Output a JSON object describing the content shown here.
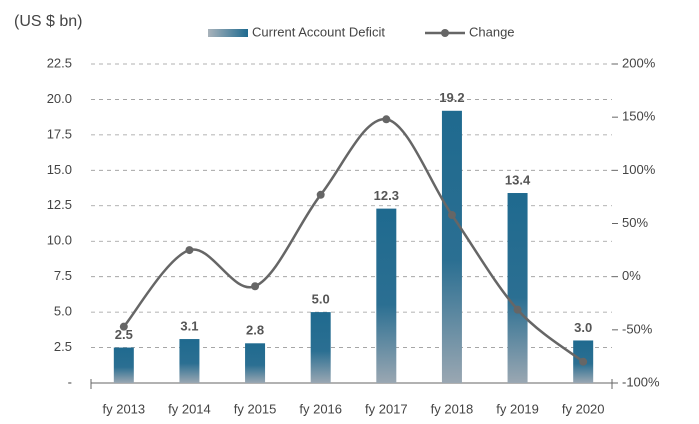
{
  "chart_data": {
    "type": "bar_line",
    "y_label": "(US $ bn)",
    "categories": [
      "fy 2013",
      "fy 2014",
      "fy 2015",
      "fy 2016",
      "fy 2017",
      "fy 2018",
      "fy 2019",
      "fy 2020"
    ],
    "series": [
      {
        "name": "Current Account Deficit",
        "type": "bar",
        "color": "#1f6a8f",
        "values": [
          2.5,
          3.1,
          2.8,
          5,
          12.3,
          19.2,
          13.4,
          3
        ],
        "value_labels": [
          "2.5",
          "3.1",
          "2.8",
          "5.0",
          "12.3",
          "19.2",
          "13.4",
          "3.0"
        ]
      },
      {
        "name": "Change",
        "type": "line",
        "axis": "y2",
        "color": "#666666",
        "values": [
          -47,
          25,
          -9,
          77,
          148,
          58,
          -31,
          -80
        ]
      }
    ],
    "ylim": [
      0,
      22.5
    ],
    "yticks": [
      {
        "value": 0,
        "label": "-"
      },
      2.5,
      {
        "value": 5,
        "label": "5.0"
      },
      7.5,
      {
        "value": 10,
        "label": "10.0"
      },
      12.5,
      {
        "value": 15,
        "label": "15.0"
      },
      17.5,
      {
        "value": 20,
        "label": "20.0"
      },
      22.5
    ],
    "y2lim": [
      -100,
      200
    ],
    "y2ticks": [
      {
        "value": -100,
        "label": "-100%"
      },
      {
        "value": -50,
        "label": "-50%"
      },
      {
        "value": 0,
        "label": "0%"
      },
      {
        "value": 50,
        "label": "50%"
      },
      {
        "value": 100,
        "label": "100%"
      },
      {
        "value": 150,
        "label": "150%"
      },
      {
        "value": 200,
        "label": "200%"
      }
    ],
    "grid": true,
    "legend": "top"
  }
}
